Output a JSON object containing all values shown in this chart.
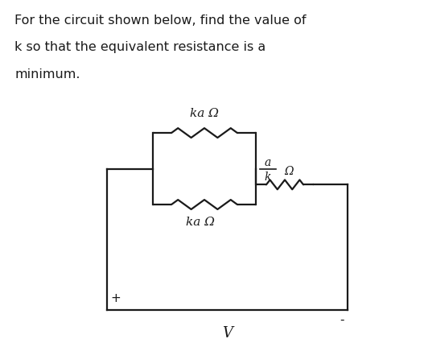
{
  "title_lines": [
    "For the circuit shown below, find the value of",
    "k so that the equivalent resistance is a",
    "minimum."
  ],
  "bg_color": "#ffffff",
  "line_color": "#1a1a1a",
  "text_color": "#1a1a1a",
  "resistor_top_label": "ka Ω",
  "resistor_bot_label": "ka Ω",
  "resistor_right_unit": "Ω",
  "voltage_label": "V",
  "plus_label": "+",
  "minus_label": "-",
  "figsize": [
    5.27,
    4.27
  ],
  "dpi": 100
}
